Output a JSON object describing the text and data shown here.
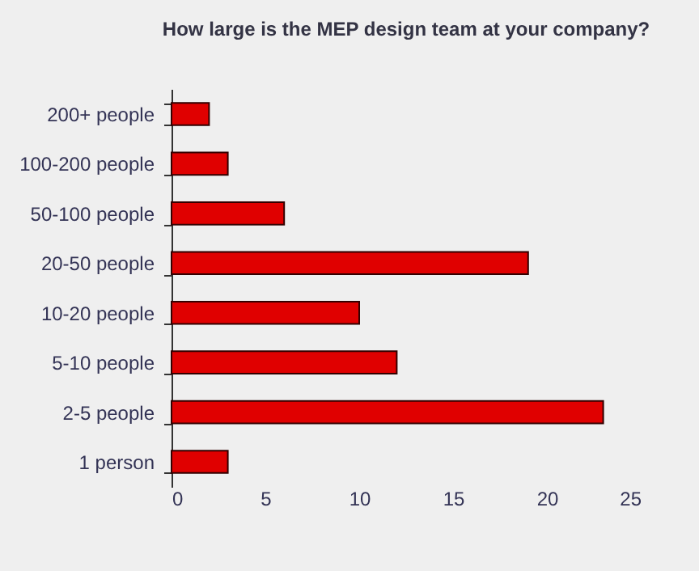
{
  "chart_data": {
    "type": "bar",
    "orientation": "horizontal",
    "title": "How large is the MEP design team at your company?",
    "categories": [
      "200+ people",
      "100-200  people",
      "50-100 people",
      "20-50 people",
      "10-20 people",
      "5-10 people",
      "2-5 people",
      "1 person"
    ],
    "values": [
      2,
      3,
      6,
      19,
      10,
      12,
      23,
      3
    ],
    "color": "#e00000",
    "xlim": [
      0,
      25
    ],
    "xticks": [
      0,
      5,
      10,
      15,
      20,
      25
    ],
    "grid": false
  }
}
